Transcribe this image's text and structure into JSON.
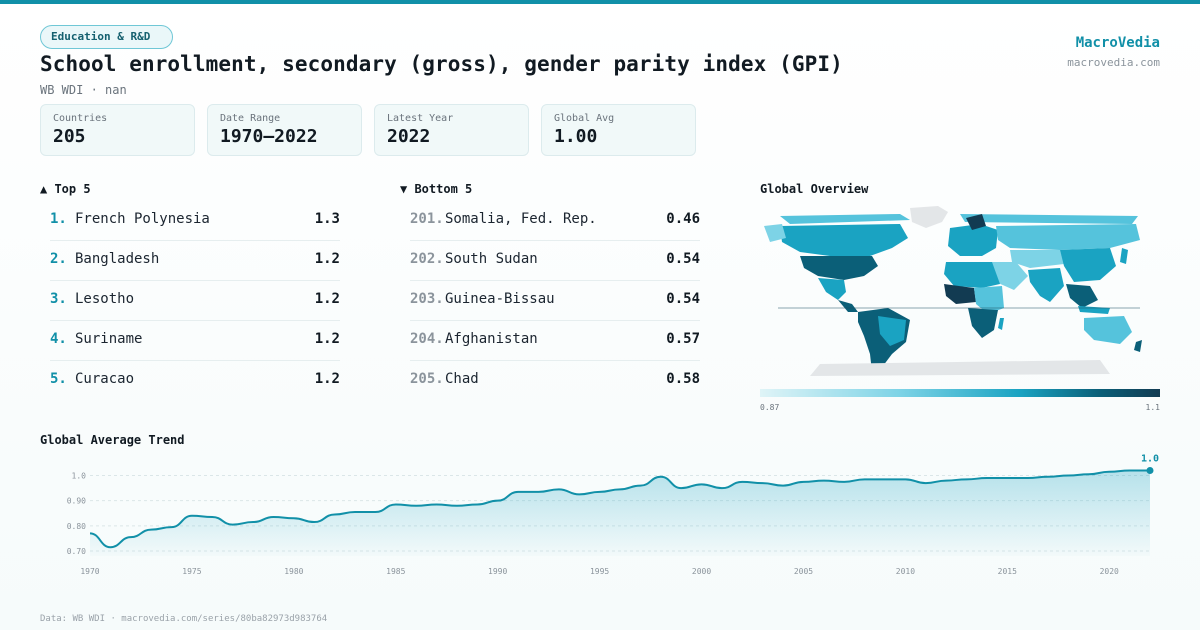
{
  "category": "Education & R&D",
  "title": "School enrollment, secondary (gross), gender parity index (GPI)",
  "subtitle": "WB WDI · nan",
  "brand": {
    "name": "MacroVedia",
    "url": "macrovedia.com"
  },
  "stats": [
    {
      "label": "Countries",
      "value": "205"
    },
    {
      "label": "Date Range",
      "value": "1970–2022"
    },
    {
      "label": "Latest Year",
      "value": "2022"
    },
    {
      "label": "Global Avg",
      "value": "1.00"
    }
  ],
  "top5": {
    "heading": "▲ Top 5",
    "items": [
      {
        "rank": "1.",
        "name": "French Polynesia",
        "value": "1.3"
      },
      {
        "rank": "2.",
        "name": "Bangladesh",
        "value": "1.2"
      },
      {
        "rank": "3.",
        "name": "Lesotho",
        "value": "1.2"
      },
      {
        "rank": "4.",
        "name": "Suriname",
        "value": "1.2"
      },
      {
        "rank": "5.",
        "name": "Curacao",
        "value": "1.2"
      }
    ]
  },
  "bottom5": {
    "heading": "▼ Bottom 5",
    "items": [
      {
        "rank": "201.",
        "name": "Somalia, Fed. Rep.",
        "value": "0.46"
      },
      {
        "rank": "202.",
        "name": "South Sudan",
        "value": "0.54"
      },
      {
        "rank": "203.",
        "name": "Guinea-Bissau",
        "value": "0.54"
      },
      {
        "rank": "204.",
        "name": "Afghanistan",
        "value": "0.57"
      },
      {
        "rank": "205.",
        "name": "Chad",
        "value": "0.58"
      }
    ]
  },
  "map": {
    "heading": "Global Overview",
    "legend_min": "0.87",
    "legend_max": "1.1",
    "colors": [
      "#dff4f7",
      "#7dd3e6",
      "#1aa3c2",
      "#0b5f78",
      "#123b52"
    ],
    "no_data_color": "#e3e6e8"
  },
  "trend": {
    "heading": "Global Average Trend",
    "end_label": "1.0"
  },
  "chart_data": {
    "type": "area",
    "ylim": [
      0.68,
      1.03
    ],
    "yticks": [
      0.7,
      0.8,
      0.9,
      1.0
    ],
    "ytick_labels": [
      "0.70",
      "0.80",
      "0.90",
      "1.0"
    ],
    "xticks": [
      1970,
      1975,
      1980,
      1985,
      1990,
      1995,
      2000,
      2005,
      2010,
      2015,
      2020
    ],
    "x": [
      1970,
      1971,
      1972,
      1973,
      1974,
      1975,
      1976,
      1977,
      1978,
      1979,
      1980,
      1981,
      1982,
      1983,
      1984,
      1985,
      1986,
      1987,
      1988,
      1989,
      1990,
      1991,
      1992,
      1993,
      1994,
      1995,
      1996,
      1997,
      1998,
      1999,
      2000,
      2001,
      2002,
      2003,
      2004,
      2005,
      2006,
      2007,
      2008,
      2009,
      2010,
      2011,
      2012,
      2013,
      2014,
      2015,
      2016,
      2017,
      2018,
      2019,
      2020,
      2021,
      2022
    ],
    "y": [
      0.77,
      0.715,
      0.755,
      0.785,
      0.795,
      0.84,
      0.835,
      0.805,
      0.815,
      0.835,
      0.83,
      0.815,
      0.845,
      0.855,
      0.855,
      0.885,
      0.88,
      0.885,
      0.88,
      0.885,
      0.9,
      0.935,
      0.935,
      0.945,
      0.925,
      0.935,
      0.945,
      0.96,
      0.995,
      0.95,
      0.965,
      0.95,
      0.975,
      0.97,
      0.96,
      0.975,
      0.98,
      0.975,
      0.985,
      0.985,
      0.985,
      0.97,
      0.98,
      0.985,
      0.99,
      0.99,
      0.99,
      0.995,
      1.0,
      1.005,
      1.015,
      1.02,
      1.02
    ],
    "line_color": "#1190a8",
    "grid": true
  },
  "footer": "Data: WB WDI · macrovedia.com/series/80ba82973d983764"
}
